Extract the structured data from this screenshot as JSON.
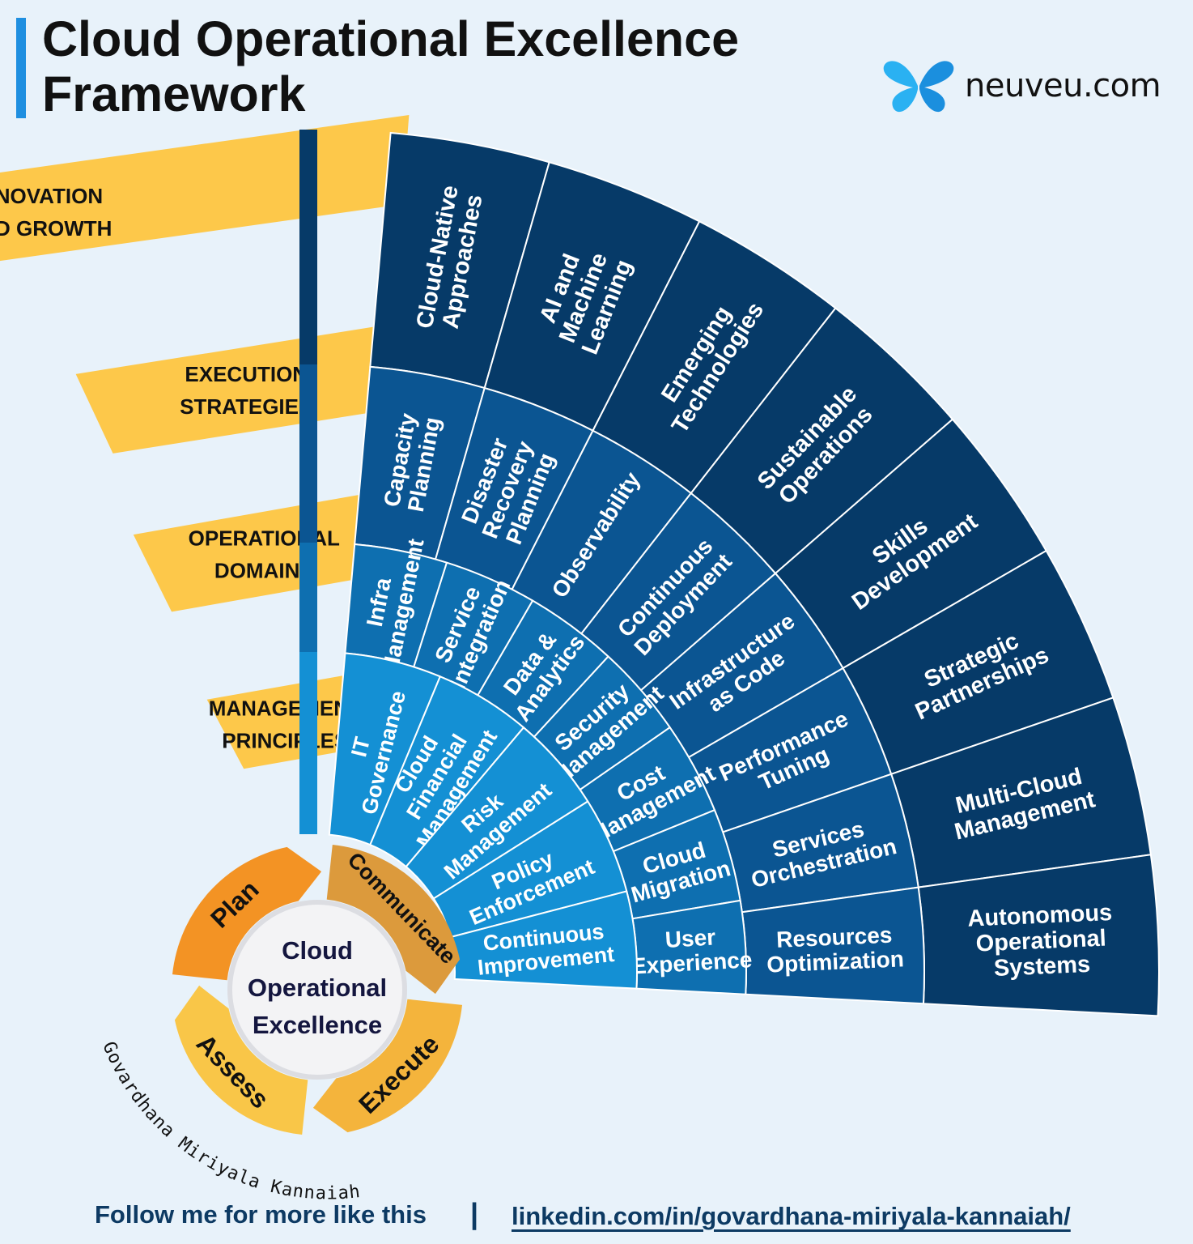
{
  "header": {
    "title_line1": "Cloud Operational Excellence",
    "title_line2": "Framework",
    "brand": "neuveu.com"
  },
  "layers": [
    {
      "label_lines": [
        "INNOVATION",
        "AND GROWTH"
      ],
      "color": "#063a68",
      "items": [
        [
          "Cloud-Native",
          "Approaches"
        ],
        [
          "AI and",
          "Machine",
          "Learning"
        ],
        [
          "Emerging",
          "Technologies"
        ],
        [
          "Sustainable",
          "Operations"
        ],
        [
          "Skills",
          "Development"
        ],
        [
          "Strategic",
          "Partnerships"
        ],
        [
          "Multi-Cloud",
          "Management"
        ],
        [
          "Autonomous",
          "Operational",
          "Systems"
        ]
      ]
    },
    {
      "label_lines": [
        "EXECUTION",
        "STRATEGIES"
      ],
      "color": "#0b5592",
      "items": [
        [
          "Capacity",
          "Planning"
        ],
        [
          "Disaster",
          "Recovery",
          "Planning"
        ],
        [
          "Observability"
        ],
        [
          "Continuous",
          "Deployment"
        ],
        [
          "Infrastructure",
          "as Code"
        ],
        [
          "Performance",
          "Tuning"
        ],
        [
          "Services",
          "Orchestration"
        ],
        [
          "Resources",
          "Optimization"
        ]
      ]
    },
    {
      "label_lines": [
        "OPERATIONAL",
        "DOMAINS"
      ],
      "color": "#0e6fb0",
      "items": [
        [
          "Infra",
          "Management"
        ],
        [
          "Service",
          "Integration"
        ],
        [
          "Data &",
          "Analytics"
        ],
        [
          "Security",
          "Management"
        ],
        [
          "Cost",
          "Management"
        ],
        [
          "Cloud",
          "Migration"
        ],
        [
          "User",
          "Experience"
        ]
      ]
    },
    {
      "label_lines": [
        "MANAGEMENT",
        "PRINCIPLES"
      ],
      "color": "#1490d4",
      "items": [
        [
          "IT",
          "Governance"
        ],
        [
          "Cloud",
          "Financial",
          "Management"
        ],
        [
          "Risk",
          "Management"
        ],
        [
          "Policy",
          "Enforcement"
        ],
        [
          "Continuous",
          "Improvement"
        ]
      ]
    }
  ],
  "cycle": {
    "center_lines": [
      "Cloud",
      "Operational",
      "Excellence"
    ],
    "steps": [
      {
        "label": "Plan",
        "color": "#f39324"
      },
      {
        "label": "Communicate",
        "color": "#dc9a3c"
      },
      {
        "label": "Execute",
        "color": "#f4b43c"
      },
      {
        "label": "Assess",
        "color": "#f9c648"
      }
    ]
  },
  "author": "Govardhana Miriyala Kannaiah",
  "footer": {
    "follow": "Follow me for more like this",
    "separator": "|",
    "link": "linkedin.com/in/govardhana-miriyala-kannaiah/"
  },
  "colors": {
    "label_band": "#fdc84a",
    "divider": "#ffffff",
    "background": "#e8f2fa"
  }
}
